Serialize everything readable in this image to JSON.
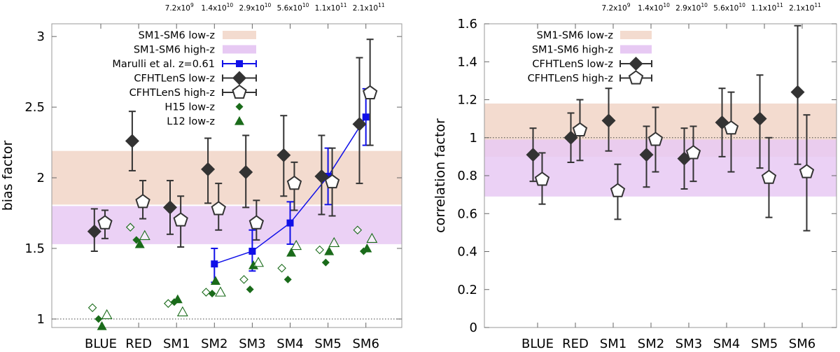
{
  "chart_data": [
    {
      "type": "scatter",
      "ylabel": "bias factor",
      "ylim": [
        0.94,
        3.09
      ],
      "yticks": [
        1,
        1.5,
        2,
        2.5,
        3
      ],
      "ytick_labels": [
        "1",
        "1.5",
        "2",
        "2.5",
        "3"
      ],
      "reference_line": 1,
      "categories": [
        "BLUE",
        "RED",
        "SM1",
        "SM2",
        "SM3",
        "SM4",
        "SM5",
        "SM6"
      ],
      "stellar_mass_labels": [
        {
          "mantissa": "7.2x10",
          "exponent": "9"
        },
        {
          "mantissa": "1.4x10",
          "exponent": "10"
        },
        {
          "mantissa": "2.9x10",
          "exponent": "10"
        },
        {
          "mantissa": "5.6x10",
          "exponent": "10"
        },
        {
          "mantissa": "1.1x10",
          "exponent": "11"
        },
        {
          "mantissa": "2.1x10",
          "exponent": "11"
        }
      ],
      "bands": [
        {
          "name": "SM1-SM6 low-z",
          "low": 1.81,
          "high": 2.19,
          "color": "#f3dbcf"
        },
        {
          "name": "SM1-SM6 high-z",
          "low": 1.53,
          "high": 1.8,
          "color": "#e7c9f3"
        }
      ],
      "series": [
        {
          "name": "Marulli et al. z=0.61",
          "marker": "square",
          "color": "#1010e8",
          "connect": true,
          "offset": 0,
          "x_index": [
            3,
            4,
            5,
            6,
            7
          ],
          "values": [
            1.39,
            1.48,
            1.68,
            2.01,
            2.43
          ],
          "err_low": [
            1.26,
            1.34,
            1.53,
            1.81,
            2.23
          ],
          "err_high": [
            1.5,
            1.63,
            1.83,
            2.21,
            2.63
          ]
        },
        {
          "name": "CFHTLenS low-z",
          "marker": "diamond",
          "color": "#333333",
          "offset": -0.17,
          "x_index": [
            0,
            1,
            2,
            3,
            4,
            5,
            6,
            7
          ],
          "values": [
            1.62,
            2.26,
            1.79,
            2.06,
            2.04,
            2.16,
            2.01,
            2.38
          ],
          "err_low": [
            1.48,
            2.05,
            1.6,
            1.82,
            1.79,
            1.87,
            1.74,
            1.96
          ],
          "err_high": [
            1.78,
            2.47,
            1.98,
            2.28,
            2.3,
            2.44,
            2.3,
            2.85
          ]
        },
        {
          "name": "CFHTLenS high-z",
          "marker": "pentagon",
          "color": "#333333",
          "offset": 0.11,
          "x_index": [
            0,
            1,
            2,
            3,
            4,
            5,
            6,
            7
          ],
          "values": [
            1.68,
            1.83,
            1.7,
            1.78,
            1.68,
            1.96,
            1.97,
            2.6
          ],
          "err_low": [
            1.57,
            1.71,
            1.51,
            1.63,
            1.56,
            1.77,
            1.73,
            2.23
          ],
          "err_high": [
            1.77,
            1.98,
            1.87,
            1.96,
            1.84,
            2.11,
            2.21,
            2.98
          ]
        },
        {
          "name": "H15 low-z",
          "marker": "diamond-small",
          "color": "#1a6b1a",
          "offset": -0.06,
          "x_index": [
            0,
            1,
            2,
            3,
            4,
            5,
            6,
            7
          ],
          "values": [
            1.0,
            1.56,
            1.12,
            1.18,
            1.21,
            1.28,
            1.4,
            1.48
          ]
        },
        {
          "name": "H15 high-z",
          "marker": "diamond-small-open",
          "color": "#1a6b1a",
          "offset": -0.22,
          "in_legend": false,
          "x_index": [
            0,
            1,
            2,
            3,
            4,
            5,
            6,
            7
          ],
          "values": [
            1.08,
            1.65,
            1.11,
            1.19,
            1.28,
            1.36,
            1.49,
            1.63
          ]
        },
        {
          "name": "L12 low-z",
          "marker": "triangle",
          "color": "#1a6b1a",
          "offset": 0.03,
          "x_index": [
            0,
            1,
            2,
            3,
            4,
            5,
            6,
            7
          ],
          "values": [
            0.95,
            1.53,
            1.14,
            1.27,
            1.38,
            1.47,
            1.48,
            1.5
          ]
        },
        {
          "name": "L12 high-z",
          "marker": "triangle-open",
          "color": "#1a6b1a",
          "offset": 0.16,
          "in_legend": false,
          "x_index": [
            0,
            1,
            2,
            3,
            4,
            5,
            6,
            7
          ],
          "values": [
            1.03,
            1.59,
            1.05,
            1.19,
            1.4,
            1.52,
            1.54,
            1.57
          ]
        }
      ]
    },
    {
      "type": "scatter",
      "ylabel": "correlation factor",
      "ylim": [
        0,
        1.6
      ],
      "yticks": [
        0,
        0.2,
        0.4,
        0.6,
        0.8,
        1,
        1.2,
        1.4,
        1.6
      ],
      "ytick_labels": [
        "0",
        "0.2",
        "0.4",
        "0.6",
        "0.8",
        "1",
        "1.2",
        "1.4",
        "1.6"
      ],
      "reference_line": 1,
      "categories": [
        "BLUE",
        "RED",
        "SM1",
        "SM2",
        "SM3",
        "SM4",
        "SM5",
        "SM6"
      ],
      "stellar_mass_labels": [
        {
          "mantissa": "7.2x10",
          "exponent": "9"
        },
        {
          "mantissa": "1.4x10",
          "exponent": "10"
        },
        {
          "mantissa": "2.9x10",
          "exponent": "10"
        },
        {
          "mantissa": "5.6x10",
          "exponent": "10"
        },
        {
          "mantissa": "1.1x10",
          "exponent": "11"
        },
        {
          "mantissa": "2.1x10",
          "exponent": "11"
        }
      ],
      "bands": [
        {
          "name": "SM1-SM6 low-z",
          "low": 0.9,
          "high": 1.18,
          "color": "#f3dbcf"
        },
        {
          "name": "SM1-SM6 high-z",
          "low": 0.69,
          "high": 0.99,
          "color": "#e7c9f3"
        }
      ],
      "series": [
        {
          "name": "CFHTLenS low-z",
          "marker": "diamond",
          "color": "#333333",
          "offset": -0.12,
          "x_index": [
            0,
            1,
            2,
            3,
            4,
            5,
            6,
            7
          ],
          "values": [
            0.91,
            1.0,
            1.09,
            0.91,
            0.89,
            1.08,
            1.1,
            1.24
          ],
          "err_low": [
            0.77,
            0.87,
            0.93,
            0.74,
            0.73,
            0.9,
            0.84,
            0.86
          ],
          "err_high": [
            1.05,
            1.13,
            1.26,
            1.06,
            1.05,
            1.26,
            1.33,
            1.59
          ]
        },
        {
          "name": "CFHTLenS high-z",
          "marker": "pentagon",
          "color": "#333333",
          "offset": 0.12,
          "x_index": [
            0,
            1,
            2,
            3,
            4,
            5,
            6,
            7
          ],
          "values": [
            0.78,
            1.04,
            0.72,
            0.99,
            0.92,
            1.05,
            0.79,
            0.82
          ],
          "err_low": [
            0.65,
            0.88,
            0.57,
            0.82,
            0.77,
            0.82,
            0.58,
            0.51
          ],
          "err_high": [
            0.92,
            1.2,
            0.86,
            1.16,
            1.06,
            1.24,
            1.0,
            1.12
          ]
        }
      ]
    }
  ]
}
